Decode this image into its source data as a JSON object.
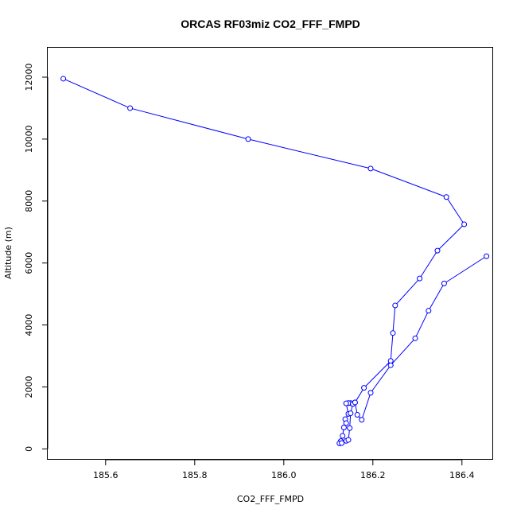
{
  "chart_data": {
    "type": "line",
    "title": "ORCAS RF03miz CO2_FFF_FMPD",
    "xlabel": "CO2_FFF_FMPD",
    "ylabel": "Altitude (m)",
    "xlim": [
      185.47,
      186.47
    ],
    "ylim": [
      -350,
      12950
    ],
    "xticks": [
      185.6,
      185.8,
      186.0,
      186.2,
      186.4
    ],
    "yticks": [
      0,
      2000,
      4000,
      6000,
      8000,
      10000,
      12000
    ],
    "grid": false,
    "series_color": "#0000ff",
    "series": [
      {
        "x": [
          185.505,
          185.655,
          185.92,
          186.195,
          186.365,
          186.405,
          186.345,
          186.305,
          186.25,
          186.245,
          186.24,
          186.18,
          186.16,
          186.15,
          186.145,
          186.14,
          186.145,
          186.138,
          186.14,
          186.135,
          186.132,
          186.128,
          186.125,
          186.13,
          186.14,
          186.145,
          186.148,
          186.15,
          186.155,
          186.16,
          186.165,
          186.175,
          186.195,
          186.24,
          186.295,
          186.325,
          186.36,
          186.455
        ],
        "y": [
          11950,
          11000,
          10000,
          9050,
          8130,
          7250,
          6400,
          5500,
          4630,
          3740,
          2840,
          1970,
          1500,
          1480,
          1480,
          1470,
          1130,
          960,
          830,
          690,
          420,
          250,
          180,
          190,
          260,
          290,
          670,
          1150,
          1450,
          1500,
          1100,
          940,
          1810,
          2700,
          3570,
          4460,
          5340,
          6220
        ]
      }
    ]
  }
}
